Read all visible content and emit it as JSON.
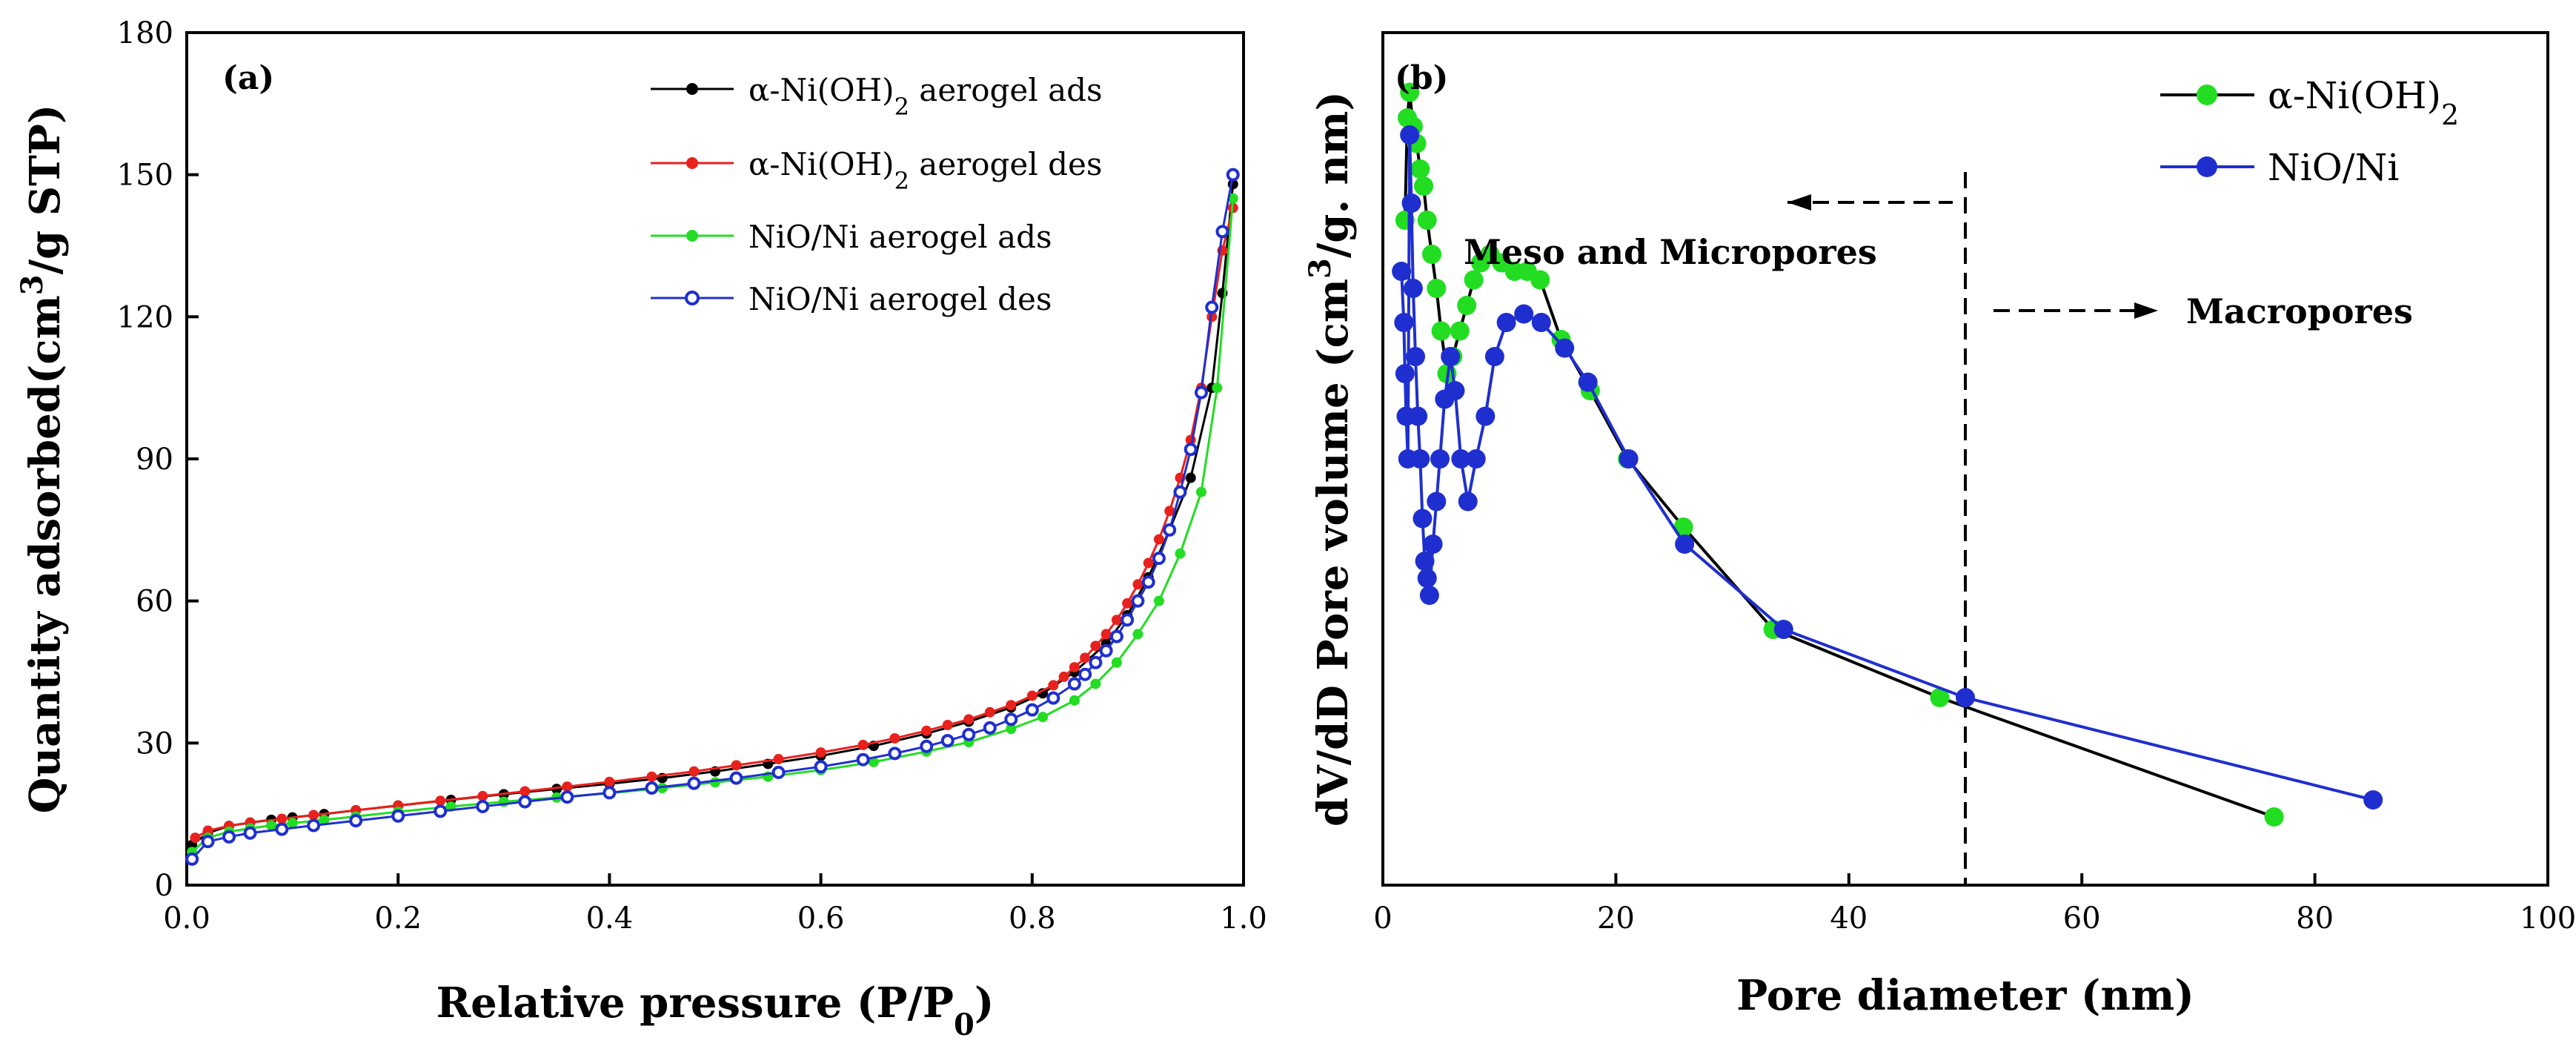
{
  "figure": {
    "title": "",
    "panels": [
      "(a)",
      "(b)"
    ]
  },
  "colors": {
    "black": "#000000",
    "red": "#e8211d",
    "green": "#22dd22",
    "blue": "#1f2fcf",
    "axis": "#000000"
  },
  "chart_data": [
    {
      "type": "line",
      "panel_label": "(a)",
      "title": "",
      "xlabel_main": "Relative pressure (P/P",
      "xlabel_sub": "0",
      "xlabel_close": ")",
      "ylabel_main": "Quantity adsorbed(cm",
      "ylabel_sup": "3",
      "ylabel_rest": "/g STP)",
      "xlim": [
        0.0,
        1.0
      ],
      "ylim": [
        0,
        180
      ],
      "xticks": [
        "0.0",
        "0.2",
        "0.4",
        "0.6",
        "0.8",
        "1.0"
      ],
      "yticks": [
        "0",
        "30",
        "60",
        "90",
        "120",
        "150",
        "180"
      ],
      "legend_position": "top-right",
      "series": [
        {
          "name": "α-Ni(OH)₂ aerogel ads",
          "label_main": "α-Ni(OH)",
          "label_sub": "2",
          "label_rest": " aerogel ads",
          "color": "#000000",
          "marker": "dot",
          "x": [
            0.005,
            0.02,
            0.04,
            0.06,
            0.08,
            0.1,
            0.13,
            0.16,
            0.2,
            0.25,
            0.3,
            0.35,
            0.4,
            0.45,
            0.5,
            0.55,
            0.6,
            0.65,
            0.7,
            0.74,
            0.78,
            0.81,
            0.84,
            0.87,
            0.89,
            0.91,
            0.93,
            0.95,
            0.97,
            0.98,
            0.99
          ],
          "y": [
            8.5,
            11,
            12.5,
            13.2,
            13.8,
            14.3,
            15,
            15.8,
            16.8,
            18,
            19.2,
            20.3,
            21.4,
            22.6,
            24,
            25.6,
            27.3,
            29.4,
            32,
            34.5,
            37.5,
            40.5,
            45,
            51,
            57,
            65,
            75,
            86,
            105,
            125,
            148
          ]
        },
        {
          "name": "α-Ni(OH)₂ aerogel des",
          "label_main": "α-Ni(OH)",
          "label_sub": "2",
          "label_rest": " aerogel des",
          "color": "#e8211d",
          "marker": "dot",
          "x": [
            0.99,
            0.98,
            0.97,
            0.96,
            0.95,
            0.94,
            0.93,
            0.92,
            0.91,
            0.9,
            0.89,
            0.88,
            0.87,
            0.86,
            0.85,
            0.84,
            0.83,
            0.82,
            0.8,
            0.78,
            0.76,
            0.74,
            0.72,
            0.7,
            0.67,
            0.64,
            0.6,
            0.56,
            0.52,
            0.48,
            0.44,
            0.4,
            0.36,
            0.32,
            0.28,
            0.24,
            0.2,
            0.16,
            0.12,
            0.09,
            0.06,
            0.04,
            0.02,
            0.008
          ],
          "y": [
            143,
            134,
            120,
            105,
            94,
            86,
            79,
            73,
            68,
            63.5,
            59.5,
            56,
            53,
            50.5,
            48,
            46,
            44,
            42.2,
            40,
            38,
            36.5,
            35,
            33.8,
            32.6,
            31,
            29.6,
            28,
            26.6,
            25.3,
            24,
            22.9,
            21.8,
            20.8,
            19.8,
            18.8,
            17.8,
            16.8,
            15.8,
            14.8,
            14,
            13.2,
            12.5,
            11.5,
            10
          ]
        },
        {
          "name": "NiO/Ni aerogel ads",
          "label_main": "NiO/Ni aerogel ads",
          "label_sub": "",
          "label_rest": "",
          "color": "#22dd22",
          "marker": "dot",
          "x": [
            0.005,
            0.02,
            0.04,
            0.06,
            0.08,
            0.1,
            0.13,
            0.16,
            0.2,
            0.25,
            0.3,
            0.35,
            0.4,
            0.45,
            0.5,
            0.55,
            0.6,
            0.65,
            0.7,
            0.74,
            0.78,
            0.81,
            0.84,
            0.86,
            0.88,
            0.9,
            0.92,
            0.94,
            0.96,
            0.975,
            0.99
          ],
          "y": [
            7,
            10,
            11.3,
            12,
            12.6,
            13.1,
            13.8,
            14.5,
            15.5,
            16.6,
            17.6,
            18.5,
            19.4,
            20.5,
            21.7,
            22.9,
            24.3,
            26,
            28.2,
            30.2,
            33,
            35.5,
            39,
            42.5,
            47,
            53,
            60,
            70,
            83,
            105,
            145
          ]
        },
        {
          "name": "NiO/Ni aerogel des",
          "label_main": "NiO/Ni aerogel des",
          "label_sub": "",
          "label_rest": "",
          "color": "#1f2fcf",
          "marker": "ring",
          "x": [
            0.99,
            0.98,
            0.97,
            0.96,
            0.95,
            0.94,
            0.93,
            0.92,
            0.91,
            0.9,
            0.89,
            0.88,
            0.87,
            0.86,
            0.85,
            0.84,
            0.82,
            0.8,
            0.78,
            0.76,
            0.74,
            0.72,
            0.7,
            0.67,
            0.64,
            0.6,
            0.56,
            0.52,
            0.48,
            0.44,
            0.4,
            0.36,
            0.32,
            0.28,
            0.24,
            0.2,
            0.16,
            0.12,
            0.09,
            0.06,
            0.04,
            0.02,
            0.005
          ],
          "y": [
            150,
            138,
            122,
            104,
            92,
            83,
            75,
            69,
            64,
            60,
            56,
            52.5,
            49.5,
            47,
            44.5,
            42.5,
            39.5,
            37,
            35,
            33.2,
            31.8,
            30.5,
            29.3,
            27.8,
            26.5,
            25,
            23.8,
            22.6,
            21.5,
            20.5,
            19.5,
            18.6,
            17.6,
            16.6,
            15.6,
            14.6,
            13.6,
            12.6,
            11.8,
            11,
            10.2,
            9.2,
            5.5
          ]
        }
      ]
    },
    {
      "type": "line",
      "panel_label": "(b)",
      "title": "",
      "xlabel": "Pore diameter (nm)",
      "ylabel_main": "dV/dD Pore volume (cm",
      "ylabel_sup": "3",
      "ylabel_rest": "/g. nm)",
      "xlim": [
        0,
        100
      ],
      "ylim": [
        0,
        1
      ],
      "xticks": [
        "0",
        "20",
        "40",
        "60",
        "80",
        "100"
      ],
      "yticks": [],
      "legend_position": "top-right",
      "divider_x": 50,
      "annotations": {
        "left_region": "Meso and Micropores",
        "right_region": "Macropores"
      },
      "series": [
        {
          "name": "α-Ni(OH)₂",
          "label_main": "α-Ni(OH)",
          "label_sub": "2",
          "color": "#22dd22",
          "line_color": "#000000",
          "x": [
            1.9,
            2.1,
            2.3,
            2.6,
            2.9,
            3.2,
            3.5,
            3.8,
            4.2,
            4.6,
            5.0,
            5.5,
            6.0,
            6.6,
            7.2,
            7.8,
            8.4,
            9.2,
            10.2,
            11.3,
            12.4,
            13.5,
            15.3,
            17.8,
            21.0,
            25.8,
            33.5,
            47.8,
            76.5
          ],
          "y": [
            0.78,
            0.9,
            0.93,
            0.89,
            0.87,
            0.84,
            0.82,
            0.78,
            0.74,
            0.7,
            0.65,
            0.6,
            0.62,
            0.65,
            0.68,
            0.71,
            0.73,
            0.74,
            0.73,
            0.72,
            0.72,
            0.71,
            0.64,
            0.58,
            0.5,
            0.42,
            0.3,
            0.22,
            0.08
          ]
        },
        {
          "name": "NiO/Ni",
          "label_main": "NiO/Ni",
          "label_sub": "",
          "color": "#1f2fcf",
          "line_color": "#1f2fcf",
          "x": [
            1.6,
            1.8,
            1.9,
            2.0,
            2.15,
            2.3,
            2.45,
            2.6,
            2.8,
            3.0,
            3.2,
            3.4,
            3.6,
            3.8,
            4.0,
            4.3,
            4.6,
            4.9,
            5.3,
            5.8,
            6.2,
            6.7,
            7.3,
            8.0,
            8.8,
            9.6,
            10.6,
            12.1,
            13.6,
            15.6,
            17.6,
            21.1,
            25.9,
            34.4,
            50.0,
            85.0
          ],
          "y": [
            0.72,
            0.66,
            0.6,
            0.55,
            0.5,
            0.88,
            0.8,
            0.7,
            0.62,
            0.55,
            0.5,
            0.43,
            0.38,
            0.36,
            0.34,
            0.4,
            0.45,
            0.5,
            0.57,
            0.62,
            0.58,
            0.5,
            0.45,
            0.5,
            0.55,
            0.62,
            0.66,
            0.67,
            0.66,
            0.63,
            0.59,
            0.5,
            0.4,
            0.3,
            0.22,
            0.1
          ]
        }
      ]
    }
  ]
}
